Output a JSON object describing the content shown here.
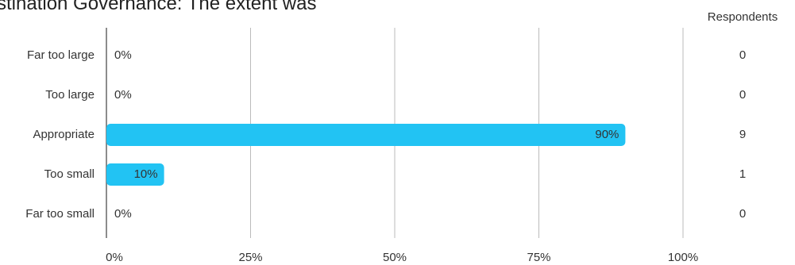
{
  "chart_data": {
    "type": "hbar",
    "title": "stination Governance: The extent was",
    "categories": [
      "Far too large",
      "Too large",
      "Appropriate",
      "Too small",
      "Far too small"
    ],
    "values": [
      0,
      0,
      90,
      10,
      0
    ],
    "value_labels": [
      "0%",
      "0%",
      "90%",
      "10%",
      "0%"
    ],
    "color": "#22c3f3",
    "xlim": [
      0,
      100
    ],
    "xticks": [
      {
        "value": 0,
        "label": "0%"
      },
      {
        "value": 25,
        "label": "25%"
      },
      {
        "value": 50,
        "label": "50%"
      },
      {
        "value": 75,
        "label": "75%"
      },
      {
        "value": 100,
        "label": "100%"
      }
    ],
    "grid": true,
    "respondents": {
      "label": "Respondents",
      "values": [
        0,
        0,
        9,
        1,
        0
      ]
    }
  }
}
